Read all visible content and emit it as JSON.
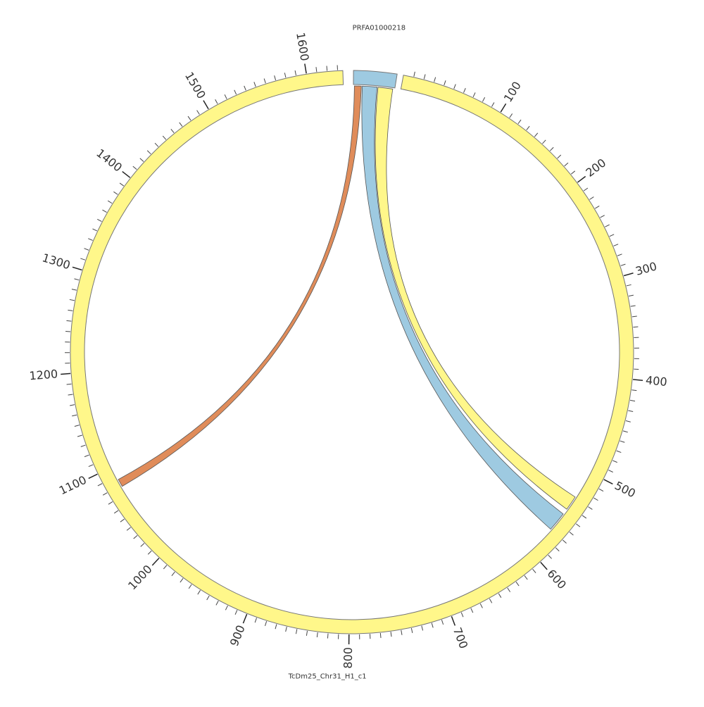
{
  "chart_data": {
    "type": "chord",
    "segments": [
      {
        "name": "PRFA01000218",
        "length": 42,
        "color": "#9ecae1"
      },
      {
        "name": "TcDm25_Chr31_H1_c1",
        "length": 1635,
        "color": "#fff78a",
        "major_ticks": [
          100,
          200,
          300,
          400,
          500,
          600,
          700,
          800,
          900,
          1000,
          1100,
          1200,
          1300,
          1400,
          1500,
          1600
        ],
        "minor_ticks": [
          10,
          20,
          30,
          40,
          50,
          60,
          70,
          80,
          90,
          110,
          120,
          130,
          140,
          150,
          160,
          170,
          180,
          190,
          210,
          220,
          230,
          240,
          250,
          260,
          270,
          280,
          290,
          310,
          320,
          330,
          340,
          350,
          360,
          370,
          380,
          390,
          410,
          420,
          430,
          440,
          450,
          460,
          470,
          480,
          490,
          510,
          520,
          530,
          540,
          550,
          560,
          570,
          580,
          590,
          610,
          620,
          630,
          640,
          650,
          660,
          670,
          680,
          690,
          710,
          720,
          730,
          740,
          750,
          760,
          770,
          780,
          790,
          810,
          820,
          830,
          840,
          850,
          860,
          870,
          880,
          890,
          910,
          920,
          930,
          940,
          950,
          960,
          970,
          980,
          990,
          1010,
          1020,
          1030,
          1040,
          1050,
          1060,
          1070,
          1080,
          1090,
          1110,
          1120,
          1130,
          1140,
          1150,
          1160,
          1170,
          1180,
          1190,
          1210,
          1220,
          1230,
          1240,
          1250,
          1260,
          1270,
          1280,
          1290,
          1310,
          1320,
          1330,
          1340,
          1350,
          1360,
          1370,
          1380,
          1390,
          1410,
          1420,
          1430,
          1440,
          1450,
          1460,
          1470,
          1480,
          1490,
          1510,
          1520,
          1530,
          1540,
          1550,
          1560,
          1570,
          1580,
          1590,
          1610,
          1620,
          1630
        ]
      }
    ],
    "links": [
      {
        "source": [
          1,
          8
        ],
        "target": [
          1078,
          1086
        ],
        "color": "#e08c5a"
      },
      {
        "source": [
          9,
          24
        ],
        "target": [
          550,
          570
        ],
        "color": "#9ecae1"
      },
      {
        "source": [
          25,
          40
        ],
        "target": [
          529,
          544
        ],
        "color": "#fff78a"
      }
    ]
  }
}
